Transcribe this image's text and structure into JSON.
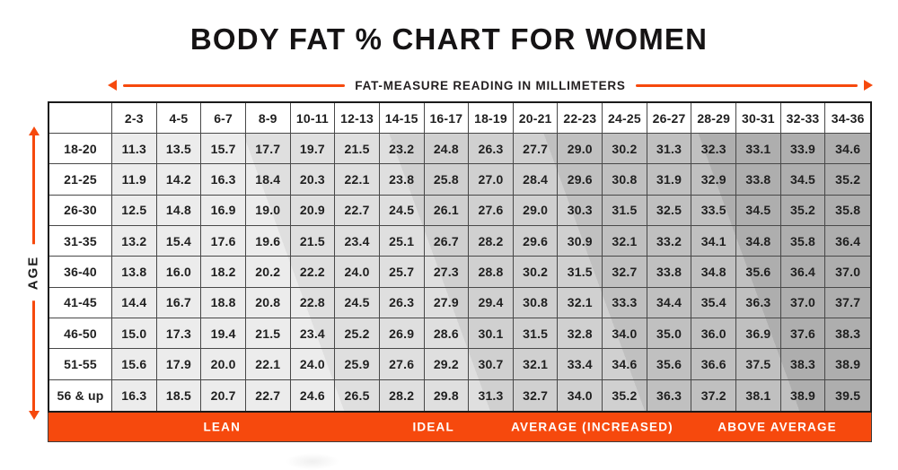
{
  "title": "BODY FAT % CHART FOR WOMEN",
  "x_axis": {
    "label": "FAT-MEASURE READING IN MILLIMETERS"
  },
  "y_axis": {
    "label": "AGE"
  },
  "chart_data": {
    "type": "table",
    "title": "BODY FAT % CHART FOR WOMEN",
    "xlabel": "FAT-MEASURE READING IN MILLIMETERS",
    "ylabel": "AGE",
    "columns": [
      "2-3",
      "4-5",
      "6-7",
      "8-9",
      "10-11",
      "12-13",
      "14-15",
      "16-17",
      "18-19",
      "20-21",
      "22-23",
      "24-25",
      "26-27",
      "28-29",
      "30-31",
      "32-33",
      "34-36"
    ],
    "rows": [
      {
        "age": "18-20",
        "values": [
          "11.3",
          "13.5",
          "15.7",
          "17.7",
          "19.7",
          "21.5",
          "23.2",
          "24.8",
          "26.3",
          "27.7",
          "29.0",
          "30.2",
          "31.3",
          "32.3",
          "33.1",
          "33.9",
          "34.6"
        ]
      },
      {
        "age": "21-25",
        "values": [
          "11.9",
          "14.2",
          "16.3",
          "18.4",
          "20.3",
          "22.1",
          "23.8",
          "25.8",
          "27.0",
          "28.4",
          "29.6",
          "30.8",
          "31.9",
          "32.9",
          "33.8",
          "34.5",
          "35.2"
        ]
      },
      {
        "age": "26-30",
        "values": [
          "12.5",
          "14.8",
          "16.9",
          "19.0",
          "20.9",
          "22.7",
          "24.5",
          "26.1",
          "27.6",
          "29.0",
          "30.3",
          "31.5",
          "32.5",
          "33.5",
          "34.5",
          "35.2",
          "35.8"
        ]
      },
      {
        "age": "31-35",
        "values": [
          "13.2",
          "15.4",
          "17.6",
          "19.6",
          "21.5",
          "23.4",
          "25.1",
          "26.7",
          "28.2",
          "29.6",
          "30.9",
          "32.1",
          "33.2",
          "34.1",
          "34.8",
          "35.8",
          "36.4"
        ]
      },
      {
        "age": "36-40",
        "values": [
          "13.8",
          "16.0",
          "18.2",
          "20.2",
          "22.2",
          "24.0",
          "25.7",
          "27.3",
          "28.8",
          "30.2",
          "31.5",
          "32.7",
          "33.8",
          "34.8",
          "35.6",
          "36.4",
          "37.0"
        ]
      },
      {
        "age": "41-45",
        "values": [
          "14.4",
          "16.7",
          "18.8",
          "20.8",
          "22.8",
          "24.5",
          "26.3",
          "27.9",
          "29.4",
          "30.8",
          "32.1",
          "33.3",
          "34.4",
          "35.4",
          "36.3",
          "37.0",
          "37.7"
        ]
      },
      {
        "age": "46-50",
        "values": [
          "15.0",
          "17.3",
          "19.4",
          "21.5",
          "23.4",
          "25.2",
          "26.9",
          "28.6",
          "30.1",
          "31.5",
          "32.8",
          "34.0",
          "35.0",
          "36.0",
          "36.9",
          "37.6",
          "38.3"
        ]
      },
      {
        "age": "51-55",
        "values": [
          "15.6",
          "17.9",
          "20.0",
          "22.1",
          "24.0",
          "25.9",
          "27.6",
          "29.2",
          "30.7",
          "32.1",
          "33.4",
          "34.6",
          "35.6",
          "36.6",
          "37.5",
          "38.3",
          "38.9"
        ]
      },
      {
        "age": "56 & up",
        "values": [
          "16.3",
          "18.5",
          "20.7",
          "22.7",
          "24.6",
          "26.5",
          "28.2",
          "29.8",
          "31.3",
          "32.7",
          "34.0",
          "35.2",
          "36.3",
          "37.2",
          "38.1",
          "38.9",
          "39.5"
        ]
      }
    ],
    "footer_categories": [
      {
        "label": "LEAN",
        "center_pct": 21.1
      },
      {
        "label": "IDEAL",
        "center_pct": 46.8
      },
      {
        "label": "AVERAGE (INCREASED)",
        "center_pct": 66.1
      },
      {
        "label": "ABOVE AVERAGE",
        "center_pct": 88.6
      }
    ],
    "shading": {
      "gradient_angle_deg": 70,
      "band_stops_pct": [
        27,
        44,
        62,
        80
      ]
    },
    "legend_position": "bottom",
    "grid": true
  },
  "colors": {
    "accent_orange": "#F6490D",
    "band_shades": [
      "#ececec",
      "#dfdfdf",
      "#d0d0d0",
      "#c0c0c0",
      "#aeaeae"
    ],
    "grid_line": "#484848",
    "outer_border": "#1a1a1a",
    "title_text": "#151314",
    "footer_text": "#ffffff"
  }
}
